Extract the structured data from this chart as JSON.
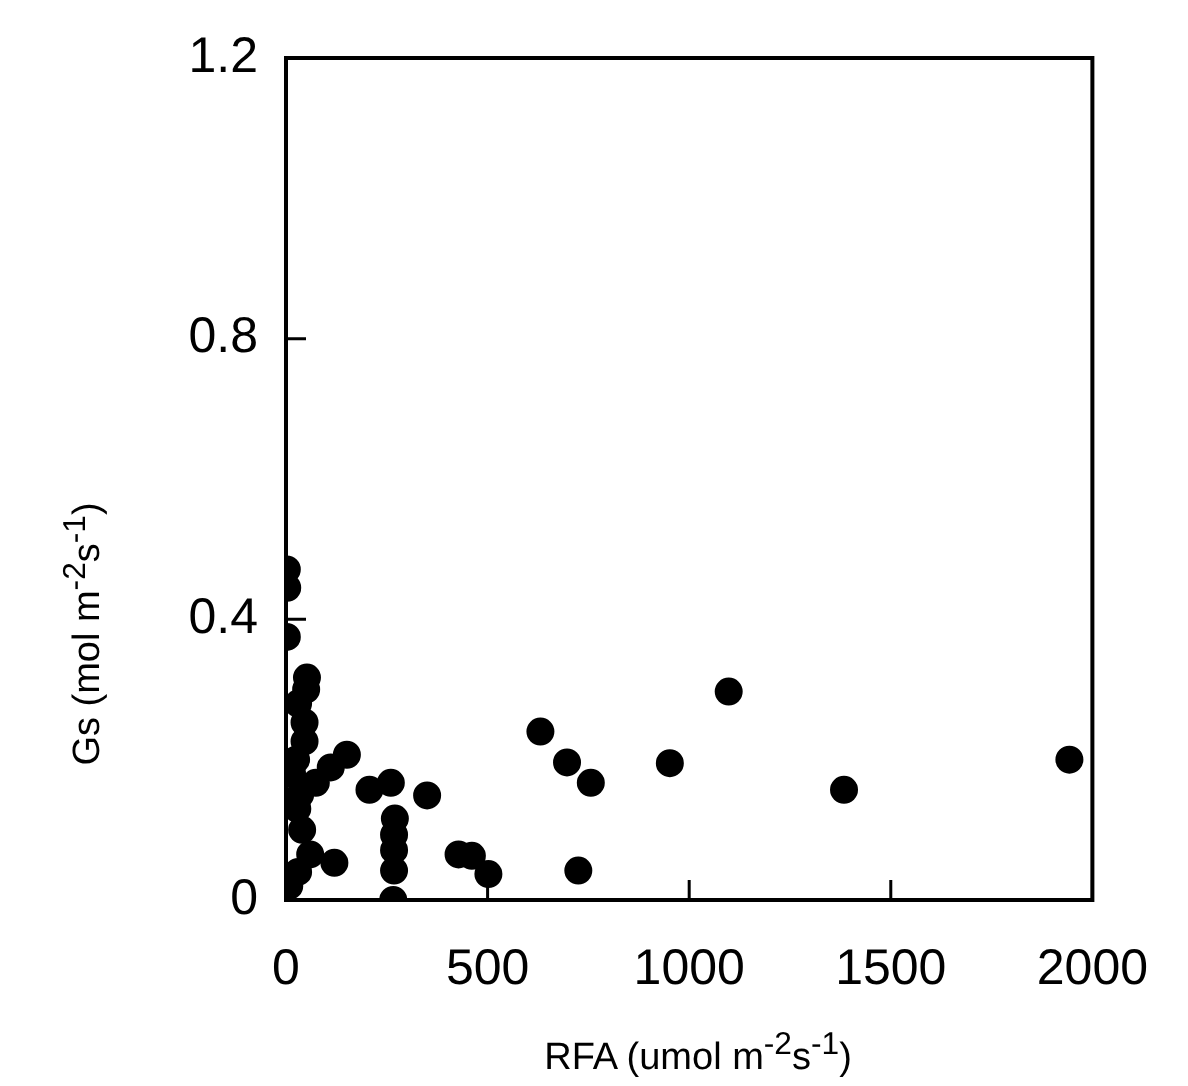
{
  "chart_data": {
    "type": "scatter",
    "xlabel": "RFA (umol m$^{-2}$s$^{-1}$)",
    "ylabel": "Gs (mol m$^{-2}$s$^{-1}$)",
    "series": [
      {
        "color": "#000000",
        "x": [
          1943,
          1384,
          1098,
          952,
          756,
          697,
          631,
          725,
          502,
          461,
          428,
          350,
          260,
          207,
          266,
          268,
          268,
          268,
          270,
          151,
          111,
          74,
          120,
          2,
          3,
          2,
          52,
          50,
          46,
          46,
          30,
          25,
          15,
          35,
          28,
          40,
          60,
          30,
          8
        ],
        "values": [
          0.2,
          0.157,
          0.297,
          0.195,
          0.167,
          0.196,
          0.24,
          0.042,
          0.037,
          0.063,
          0.065,
          0.149,
          0.167,
          0.157,
          0,
          0.042,
          0.071,
          0.093,
          0.116,
          0.207,
          0.189,
          0.167,
          0.053,
          0.471,
          0.445,
          0.375,
          0.317,
          0.3,
          0.253,
          0.226,
          0.28,
          0.2,
          0.18,
          0.15,
          0.13,
          0.1,
          0.065,
          0.04,
          0.02
        ]
      }
    ],
    "xlim": [
      0,
      2000
    ],
    "xticks": [
      0,
      500,
      1000,
      1500,
      2000
    ],
    "ylim": [
      0,
      1.2
    ],
    "yticks": [
      0,
      0.4,
      0.8,
      1.2
    ],
    "grid": false,
    "legend": false,
    "marker": "circle"
  }
}
